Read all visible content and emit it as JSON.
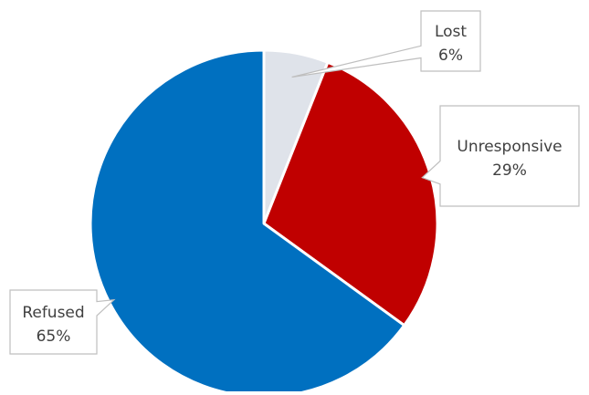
{
  "chart_data": {
    "type": "pie",
    "title": "",
    "slices": [
      {
        "label": "Lost",
        "value": 6,
        "value_label": "6%",
        "color": "#dfe3ea"
      },
      {
        "label": "Unresponsive",
        "value": 29,
        "value_label": "29%",
        "color": "#c00000"
      },
      {
        "label": "Refused",
        "value": 65,
        "value_label": "65%",
        "color": "#0070c0"
      }
    ],
    "start_angle_deg": 0,
    "direction": "clockwise",
    "legend": "none",
    "data_labels": "callouts"
  }
}
